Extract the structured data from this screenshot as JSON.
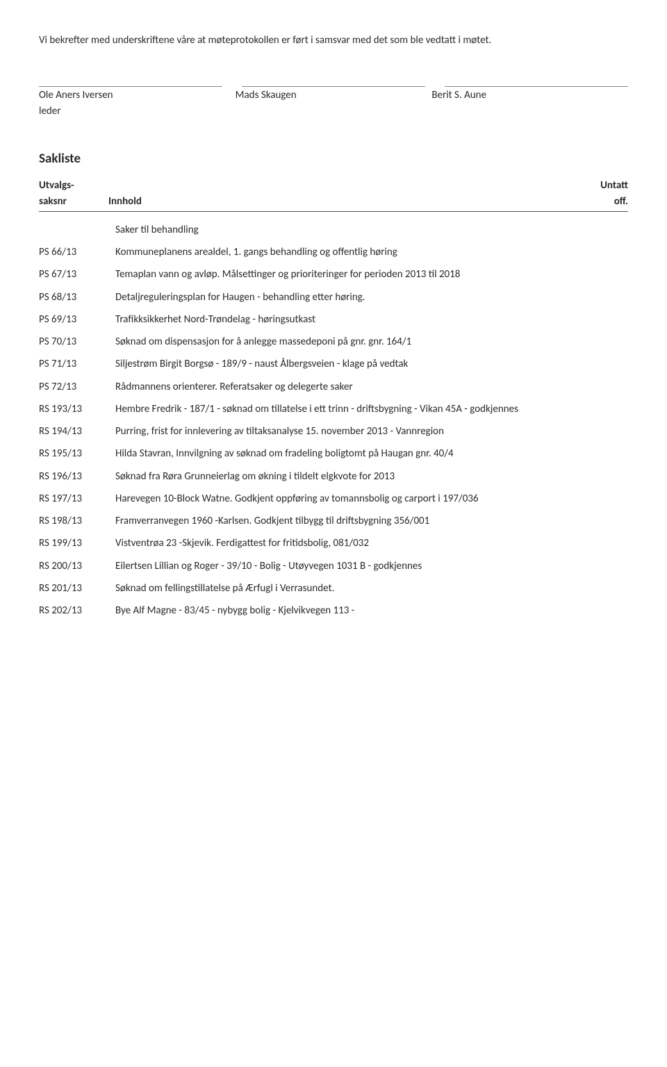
{
  "intro": "Vi bekrefter med underskriftene våre at møteprotokollen er ført i samsvar med det som ble vedtatt i møtet.",
  "signers": {
    "a": "Ole Aners Iversen",
    "b": "Mads Skaugen",
    "c": "Berit S. Aune"
  },
  "leder": "leder",
  "sakliste_heading": "Sakliste",
  "cols": {
    "utvalgs": "Utvalgs-",
    "saksnr": "saksnr",
    "innhold": "Innhold",
    "untatt": "Untatt",
    "off": "off."
  },
  "subheading": "Saker til behandling",
  "rows": [
    {
      "nr": "PS 66/13",
      "txt": "Kommuneplanens arealdel, 1. gangs behandling og offentlig høring"
    },
    {
      "nr": "PS 67/13",
      "txt": "Temaplan vann og avløp. Målsettinger og prioriteringer for perioden 2013 til 2018"
    },
    {
      "nr": "PS 68/13",
      "txt": "Detaljreguleringsplan for Haugen - behandling etter høring."
    },
    {
      "nr": "PS 69/13",
      "txt": "Trafikksikkerhet Nord-Trøndelag - høringsutkast"
    },
    {
      "nr": "PS 70/13",
      "txt": "Søknad om dispensasjon for å anlegge massedeponi på gnr. gnr. 164/1"
    },
    {
      "nr": "PS 71/13",
      "txt": "Siljestrøm Birgit Borgsø - 189/9 - naust Ålbergsveien - klage på vedtak"
    },
    {
      "nr": "PS 72/13",
      "txt": "Rådmannens orienterer. Referatsaker og delegerte saker"
    },
    {
      "nr": "RS 193/13",
      "txt": "Hembre Fredrik - 187/1 - søknad om tillatelse i ett trinn - driftsbygning - Vikan 45A - godkjennes"
    },
    {
      "nr": "RS 194/13",
      "txt": "Purring, frist for innlevering av tiltaksanalyse 15. november 2013 - Vannregion"
    },
    {
      "nr": "RS 195/13",
      "txt": "Hilda Stavran, Innvilgning av søknad om fradeling boligtomt på Haugan gnr. 40/4"
    },
    {
      "nr": "RS 196/13",
      "txt": "Søknad fra Røra Grunneierlag om økning i tildelt elgkvote for 2013"
    },
    {
      "nr": "RS 197/13",
      "txt": "Harevegen 10-Block Watne. Godkjent oppføring av tomannsbolig og carport i 197/036"
    },
    {
      "nr": "RS 198/13",
      "txt": "Framverranvegen 1960 -Karlsen. Godkjent tilbygg til driftsbygning 356/001"
    },
    {
      "nr": "RS 199/13",
      "txt": "Vistventrøa 23 -Skjevik. Ferdigattest for fritidsbolig, 081/032"
    },
    {
      "nr": "RS 200/13",
      "txt": "Eilertsen Lillian og Roger - 39/10 - Bolig - Utøyvegen 1031 B - godkjennes"
    },
    {
      "nr": "RS 201/13",
      "txt": "Søknad om fellingstillatelse på Ærfugl i Verrasundet."
    },
    {
      "nr": "RS 202/13",
      "txt": "Bye Alf Magne -  83/45 - nybygg bolig - Kjelvikvegen 113 -"
    }
  ]
}
